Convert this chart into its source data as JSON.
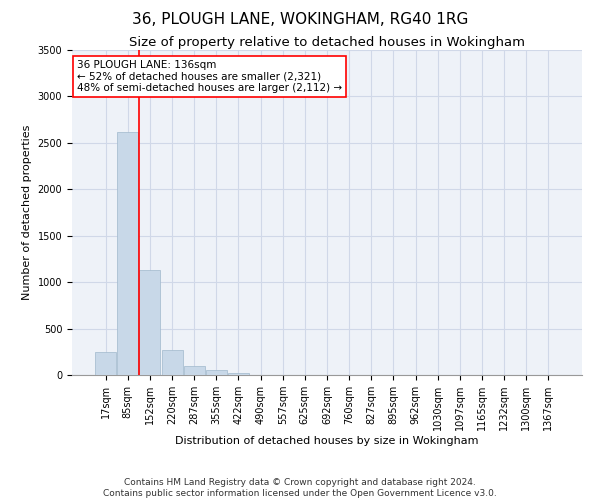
{
  "title": "36, PLOUGH LANE, WOKINGHAM, RG40 1RG",
  "subtitle": "Size of property relative to detached houses in Wokingham",
  "xlabel": "Distribution of detached houses by size in Wokingham",
  "ylabel": "Number of detached properties",
  "categories": [
    "17sqm",
    "85sqm",
    "152sqm",
    "220sqm",
    "287sqm",
    "355sqm",
    "422sqm",
    "490sqm",
    "557sqm",
    "625sqm",
    "692sqm",
    "760sqm",
    "827sqm",
    "895sqm",
    "962sqm",
    "1030sqm",
    "1097sqm",
    "1165sqm",
    "1232sqm",
    "1300sqm",
    "1367sqm"
  ],
  "values": [
    250,
    2620,
    1130,
    270,
    100,
    55,
    25,
    0,
    0,
    0,
    0,
    0,
    0,
    0,
    0,
    0,
    0,
    0,
    0,
    0,
    0
  ],
  "bar_color": "#c8d8e8",
  "bar_edge_color": "#a0b8cc",
  "bar_width": 0.95,
  "vline_color": "red",
  "vline_x": 1.5,
  "annotation_text": "36 PLOUGH LANE: 136sqm\n← 52% of detached houses are smaller (2,321)\n48% of semi-detached houses are larger (2,112) →",
  "annotation_box_color": "white",
  "annotation_box_edge_color": "red",
  "ylim": [
    0,
    3500
  ],
  "yticks": [
    0,
    500,
    1000,
    1500,
    2000,
    2500,
    3000,
    3500
  ],
  "grid_color": "#d0d8e8",
  "background_color": "#eef2f8",
  "title_fontsize": 11,
  "subtitle_fontsize": 9.5,
  "axis_fontsize": 8,
  "tick_fontsize": 7,
  "annotation_fontsize": 7.5,
  "footer_text": "Contains HM Land Registry data © Crown copyright and database right 2024.\nContains public sector information licensed under the Open Government Licence v3.0.",
  "footer_fontsize": 6.5
}
